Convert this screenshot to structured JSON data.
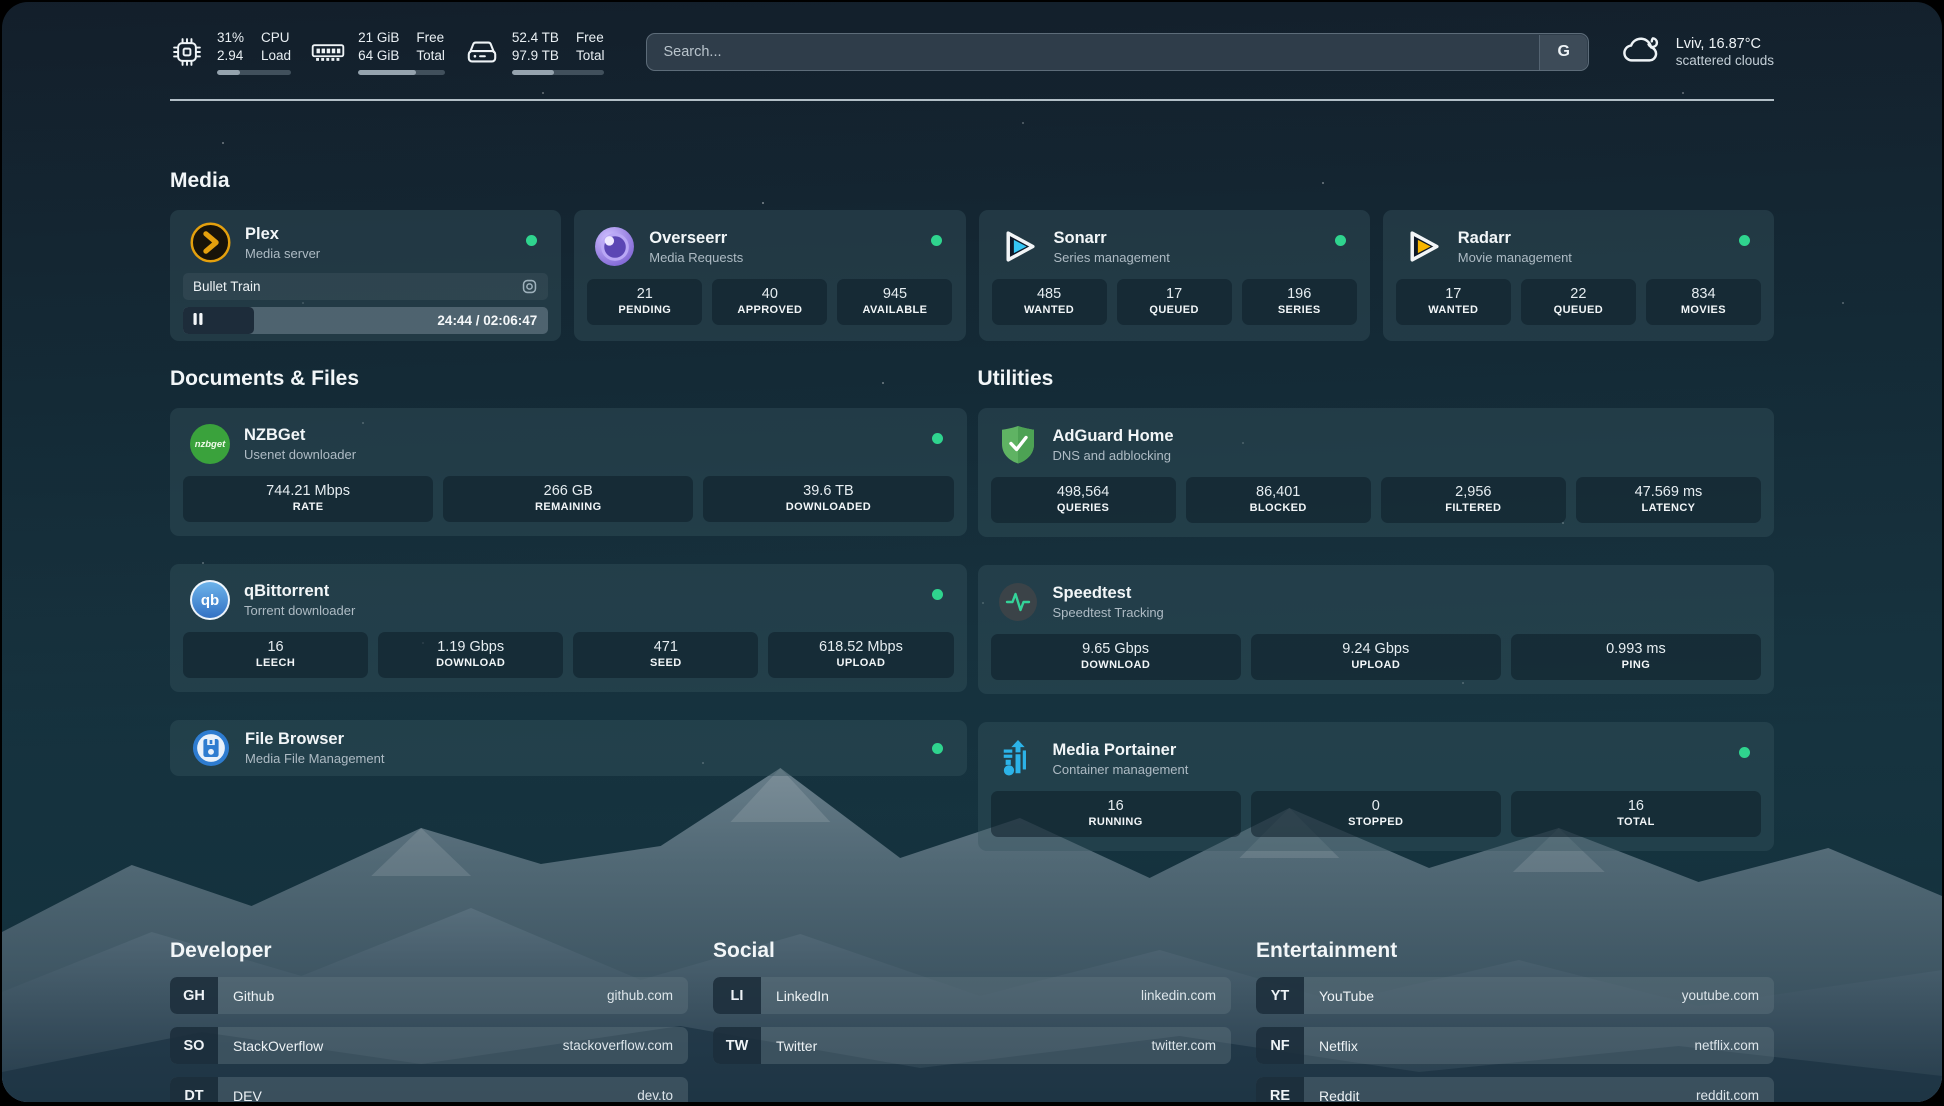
{
  "topbar": {
    "cpu": {
      "value_top": "31%",
      "value_bottom": "2.94",
      "label_top": "CPU",
      "label_bottom": "Load",
      "progress_pct": 31
    },
    "memory": {
      "value_top": "21 GiB",
      "value_bottom": "64 GiB",
      "label_top": "Free",
      "label_bottom": "Total",
      "progress_pct": 67
    },
    "disk": {
      "value_top": "52.4 TB",
      "value_bottom": "97.9 TB",
      "label_top": "Free",
      "label_bottom": "Total",
      "progress_pct": 46
    },
    "search": {
      "placeholder": "Search...",
      "button_label": "G"
    },
    "weather": {
      "location_temp": "Lviv, 16.87°C",
      "condition": "scattered clouds"
    }
  },
  "media": {
    "title": "Media",
    "services": [
      {
        "name": "Plex",
        "desc": "Media server",
        "status": "online",
        "now_playing": {
          "title": "Bullet Train",
          "time": "24:44 / 02:06:47",
          "progress_pct": 19.5
        }
      },
      {
        "name": "Overseerr",
        "desc": "Media Requests",
        "status": "online",
        "stats": [
          {
            "value": "21",
            "label": "PENDING"
          },
          {
            "value": "40",
            "label": "APPROVED"
          },
          {
            "value": "945",
            "label": "AVAILABLE"
          }
        ]
      },
      {
        "name": "Sonarr",
        "desc": "Series management",
        "status": "online",
        "stats": [
          {
            "value": "485",
            "label": "WANTED"
          },
          {
            "value": "17",
            "label": "QUEUED"
          },
          {
            "value": "196",
            "label": "SERIES"
          }
        ]
      },
      {
        "name": "Radarr",
        "desc": "Movie management",
        "status": "online",
        "stats": [
          {
            "value": "17",
            "label": "WANTED"
          },
          {
            "value": "22",
            "label": "QUEUED"
          },
          {
            "value": "834",
            "label": "MOVIES"
          }
        ]
      }
    ]
  },
  "documents": {
    "title": "Documents & Files",
    "services": [
      {
        "name": "NZBGet",
        "desc": "Usenet downloader",
        "icon_text": "nzbget",
        "status": "online",
        "stats": [
          {
            "value": "744.21 Mbps",
            "label": "RATE"
          },
          {
            "value": "266 GB",
            "label": "REMAINING"
          },
          {
            "value": "39.6 TB",
            "label": "DOWNLOADED"
          }
        ]
      },
      {
        "name": "qBittorrent",
        "desc": "Torrent downloader",
        "icon_text": "qb",
        "status": "online",
        "stats": [
          {
            "value": "16",
            "label": "LEECH"
          },
          {
            "value": "1.19 Gbps",
            "label": "DOWNLOAD"
          },
          {
            "value": "471",
            "label": "SEED"
          },
          {
            "value": "618.52 Mbps",
            "label": "UPLOAD"
          }
        ]
      },
      {
        "name": "File Browser",
        "desc": "Media File Management",
        "status": "online",
        "stats": []
      }
    ]
  },
  "utilities": {
    "title": "Utilities",
    "services": [
      {
        "name": "AdGuard Home",
        "desc": "DNS and adblocking",
        "stats": [
          {
            "value": "498,564",
            "label": "QUERIES"
          },
          {
            "value": "86,401",
            "label": "BLOCKED"
          },
          {
            "value": "2,956",
            "label": "FILTERED"
          },
          {
            "value": "47.569 ms",
            "label": "LATENCY"
          }
        ]
      },
      {
        "name": "Speedtest",
        "desc": "Speedtest Tracking",
        "stats": [
          {
            "value": "9.65 Gbps",
            "label": "DOWNLOAD"
          },
          {
            "value": "9.24 Gbps",
            "label": "UPLOAD"
          },
          {
            "value": "0.993 ms",
            "label": "PING"
          }
        ]
      },
      {
        "name": "Media Portainer",
        "desc": "Container management",
        "status": "online",
        "stats": [
          {
            "value": "16",
            "label": "RUNNING"
          },
          {
            "value": "0",
            "label": "STOPPED"
          },
          {
            "value": "16",
            "label": "TOTAL"
          }
        ]
      }
    ]
  },
  "bookmarks": {
    "developer": {
      "title": "Developer",
      "items": [
        {
          "abbr": "GH",
          "name": "Github",
          "url": "github.com"
        },
        {
          "abbr": "SO",
          "name": "StackOverflow",
          "url": "stackoverflow.com"
        },
        {
          "abbr": "DT",
          "name": "DEV",
          "url": "dev.to"
        }
      ]
    },
    "social": {
      "title": "Social",
      "items": [
        {
          "abbr": "LI",
          "name": "LinkedIn",
          "url": "linkedin.com"
        },
        {
          "abbr": "TW",
          "name": "Twitter",
          "url": "twitter.com"
        }
      ]
    },
    "entertainment": {
      "title": "Entertainment",
      "items": [
        {
          "abbr": "YT",
          "name": "YouTube",
          "url": "youtube.com"
        },
        {
          "abbr": "NF",
          "name": "Netflix",
          "url": "netflix.com"
        },
        {
          "abbr": "RE",
          "name": "Reddit",
          "url": "reddit.com"
        }
      ]
    }
  },
  "colors": {
    "status_online": "#2fd48e",
    "plex_amber": "#e5a00d",
    "sonarr_blue": "#35c5f4",
    "radarr_yellow": "#f7b500",
    "overseerr_purple": "#7a5fd1",
    "nzbget_green": "#3aa23c",
    "qbittorrent_blue": "#3372c4",
    "adguard_green": "#5fb363",
    "portainer_blue": "#2cb3e8",
    "speedtest_green": "#34d399",
    "filebrowser_blue": "#2e7cd0"
  }
}
